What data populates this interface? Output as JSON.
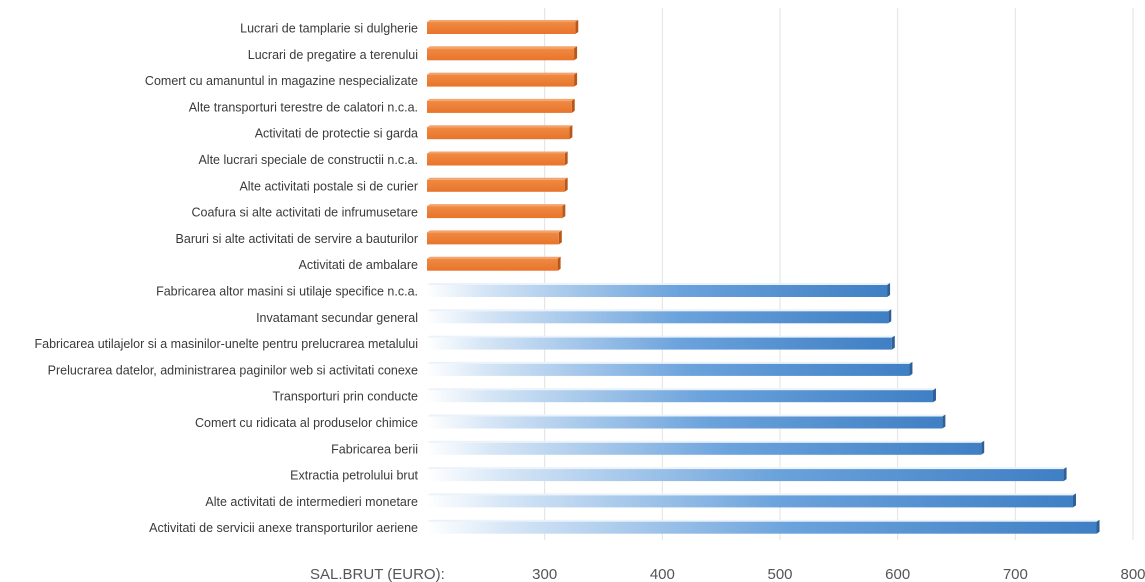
{
  "chart_data": {
    "type": "bar",
    "orientation": "horizontal",
    "xlabel": "SAL.BRUT (EURO):",
    "xlim": [
      200,
      800
    ],
    "xticks": [
      300,
      400,
      500,
      600,
      700,
      800
    ],
    "grid": true,
    "categories": [
      "Lucrari de tamplarie si dulgherie",
      "Lucrari de pregatire a terenului",
      "Comert cu amanuntul in magazine nespecializate",
      "Alte transporturi terestre de calatori n.c.a.",
      "Activitati de protectie si garda",
      "Alte lucrari speciale de constructii n.c.a.",
      "Alte activitati postale si de curier",
      "Coafura si alte activitati de infrumusetare",
      "Baruri si alte activitati de servire a bauturilor",
      "Activitati de ambalare",
      "Fabricarea altor masini si utilaje specifice n.c.a.",
      "Invatamant secundar general",
      "Fabricarea utilajelor si a masinilor-unelte pentru prelucrarea metalului",
      "Prelucrarea datelor, administrarea paginilor web si activitati conexe",
      "Transporturi prin conducte",
      "Comert cu ridicata al produselor chimice",
      "Fabricarea berii",
      "Extractia petrolului brut",
      "Alte activitati de intermedieri monetare",
      "Activitati de servicii anexe transporturilor aeriene"
    ],
    "values": [
      326,
      325,
      325,
      323,
      321,
      317,
      317,
      315,
      312,
      311,
      591,
      592,
      595,
      610,
      630,
      638,
      671,
      741,
      749,
      769
    ],
    "colors": [
      "#ED7D31",
      "#ED7D31",
      "#ED7D31",
      "#ED7D31",
      "#ED7D31",
      "#ED7D31",
      "#ED7D31",
      "#ED7D31",
      "#ED7D31",
      "#ED7D31",
      "#4A86C8",
      "#4A86C8",
      "#4A86C8",
      "#4A86C8",
      "#4A86C8",
      "#4A86C8",
      "#4A86C8",
      "#4A86C8",
      "#4A86C8",
      "#4A86C8"
    ]
  }
}
